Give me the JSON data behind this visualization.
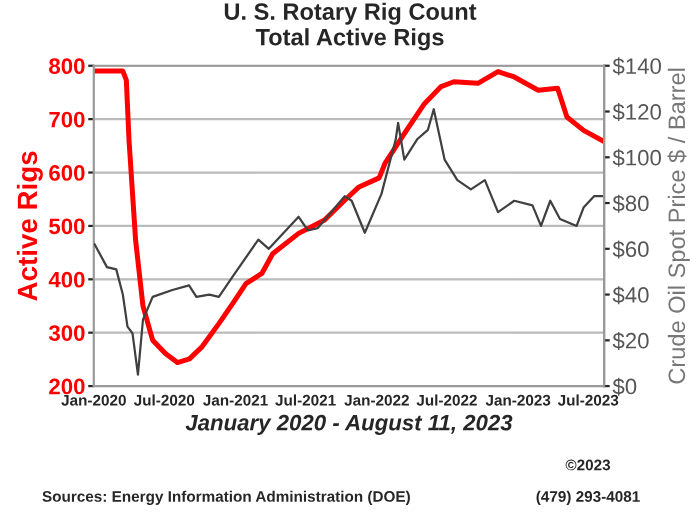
{
  "chart_data": {
    "type": "line",
    "title": "U. S. Rotary Rig Count\nTotal Active Rigs",
    "xlabel": "January 2020 - August 11, 2023",
    "ylabel": "Active Rigs",
    "y2label": "Crude Oil Spot Price $ / Barrel",
    "annotations": [
      "Sources: Energy Information Administration (DOE)",
      "©2023",
      "(479) 293-4081"
    ],
    "xlim": [
      "2020-01-01",
      "2023-08-11"
    ],
    "xticks": [
      {
        "value": "2020-01-01",
        "label": "Jan-2020"
      },
      {
        "value": "2020-07-01",
        "label": "Jul-2020"
      },
      {
        "value": "2021-01-01",
        "label": "Jan-2021"
      },
      {
        "value": "2021-07-01",
        "label": "Jul-2021"
      },
      {
        "value": "2022-01-01",
        "label": "Jan-2022"
      },
      {
        "value": "2022-07-01",
        "label": "Jul-2022"
      },
      {
        "value": "2023-01-01",
        "label": "Jan-2023"
      },
      {
        "value": "2023-07-01",
        "label": "Jul-2023"
      }
    ],
    "ylim": [
      200,
      800
    ],
    "yticks": [
      200,
      300,
      400,
      500,
      600,
      700,
      800
    ],
    "y2lim": [
      0,
      140
    ],
    "y2ticks": [
      {
        "value": 0,
        "label": "$0"
      },
      {
        "value": 20,
        "label": "$20"
      },
      {
        "value": 40,
        "label": "$40"
      },
      {
        "value": 60,
        "label": "$60"
      },
      {
        "value": 80,
        "label": "$80"
      },
      {
        "value": 100,
        "label": "$100"
      },
      {
        "value": 120,
        "label": "$120"
      },
      {
        "value": 140,
        "label": "$140"
      }
    ],
    "grid": "y",
    "marker": "none",
    "line_style": "solid",
    "series": [
      {
        "color": "#404040",
        "axis": "y2",
        "x": [
          "2020-01-03",
          "2020-02-04",
          "2020-02-28",
          "2020-03-16",
          "2020-03-28",
          "2020-04-10",
          "2020-04-24",
          "2020-05-07",
          "2020-06-01",
          "2020-07-22",
          "2020-09-03",
          "2020-09-22",
          "2020-10-25",
          "2020-11-19",
          "2020-12-25",
          "2021-03-01",
          "2021-03-28",
          "2021-06-13",
          "2021-07-07",
          "2021-08-01",
          "2021-10-10",
          "2021-10-28",
          "2021-12-01",
          "2022-01-13",
          "2022-02-19",
          "2022-02-25",
          "2022-03-13",
          "2022-04-16",
          "2022-05-13",
          "2022-05-28",
          "2022-06-25",
          "2022-07-28",
          "2022-09-01",
          "2022-10-07",
          "2022-11-10",
          "2022-12-22",
          "2023-02-07",
          "2023-03-01",
          "2023-03-25",
          "2023-04-19",
          "2023-06-01",
          "2023-06-19",
          "2023-07-16",
          "2023-08-11"
        ],
        "values": [
          62,
          52,
          51,
          40,
          26,
          23,
          5,
          29,
          39,
          42,
          44,
          39,
          40,
          39,
          48,
          64,
          60,
          74,
          68,
          69,
          83,
          81,
          67,
          84,
          108,
          115,
          99,
          108,
          112,
          121,
          99,
          90,
          86,
          90,
          76,
          81,
          79,
          70,
          81,
          73,
          70,
          78,
          83,
          83
        ]
      },
      {
        "color": "#ff0000",
        "x": [
          "2020-01-03",
          "2020-03-16",
          "2020-03-25",
          "2020-04-01",
          "2020-04-18",
          "2020-05-07",
          "2020-06-01",
          "2020-07-04",
          "2020-08-04",
          "2020-09-04",
          "2020-10-07",
          "2020-11-19",
          "2020-12-25",
          "2021-01-28",
          "2021-03-10",
          "2021-04-07",
          "2021-06-13",
          "2021-08-19",
          "2021-10-10",
          "2021-11-16",
          "2022-01-07",
          "2022-01-22",
          "2022-03-13",
          "2022-05-04",
          "2022-06-16",
          "2022-07-19",
          "2022-09-19",
          "2022-11-10",
          "2022-12-22",
          "2023-02-22",
          "2023-04-13",
          "2023-05-07",
          "2023-06-19",
          "2023-08-11"
        ],
        "values": [
          790,
          790,
          773,
          660,
          473,
          350,
          286,
          261,
          244,
          251,
          274,
          317,
          355,
          392,
          411,
          448,
          486,
          511,
          548,
          573,
          590,
          617,
          673,
          729,
          761,
          770,
          767,
          789,
          779,
          754,
          758,
          704,
          679,
          658
        ]
      }
    ]
  }
}
